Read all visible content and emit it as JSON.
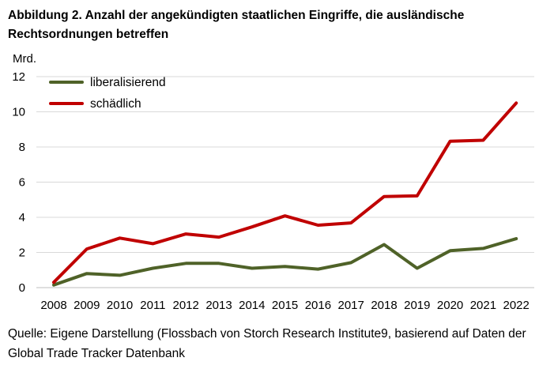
{
  "header": {
    "title": "Abbildung 2. Anzahl der angekündigten staatlichen Eingriffe, die ausländische Rechtsordnungen betreffen"
  },
  "footer": {
    "source": "Quelle: Eigene Darstellung (Flossbach von Storch Research Institute9, basierend auf Daten der Global Trade Tracker Datenbank"
  },
  "chart_data": {
    "type": "line",
    "title": "Abbildung 2. Anzahl der angekündigten staatlichen Eingriffe, die ausländische Rechtsordnungen betreffen",
    "xlabel": "",
    "ylabel": "Mrd.",
    "ylim": [
      0,
      12
    ],
    "yticks": [
      0,
      2,
      4,
      6,
      8,
      10,
      12
    ],
    "grid": "horizontal",
    "legend_position": "top-left",
    "x": [
      "2008",
      "2009",
      "2010",
      "2011",
      "2012",
      "2013",
      "2014",
      "2015",
      "2016",
      "2017",
      "2018",
      "2019",
      "2020",
      "2021",
      "2022"
    ],
    "series": [
      {
        "name": "liberalisierend",
        "color": "#4f6228",
        "values": [
          0.15,
          0.8,
          0.7,
          1.1,
          1.38,
          1.38,
          1.1,
          1.2,
          1.05,
          1.42,
          2.45,
          1.1,
          2.1,
          2.23,
          2.78
        ]
      },
      {
        "name": "schädlich",
        "color": "#c00000",
        "values": [
          0.3,
          2.2,
          2.82,
          2.5,
          3.05,
          2.87,
          3.45,
          4.08,
          3.55,
          3.68,
          5.18,
          5.22,
          8.33,
          8.38,
          10.5
        ]
      }
    ]
  }
}
